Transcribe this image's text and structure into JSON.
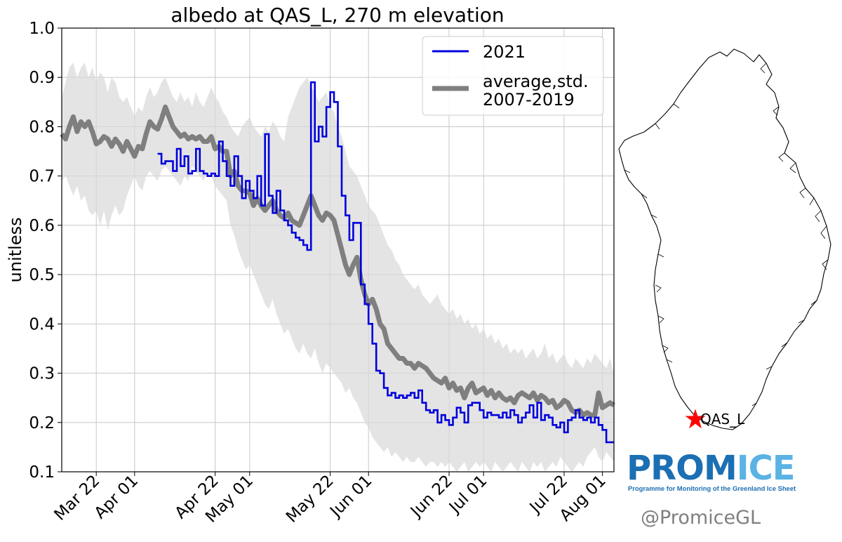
{
  "chart_data": {
    "type": "line",
    "title": "albedo at QAS_L, 270 m elevation",
    "xlabel": "",
    "ylabel": "unitless",
    "ylim": [
      0.1,
      1.0
    ],
    "yticks": [
      "0.1",
      "0.2",
      "0.3",
      "0.4",
      "0.5",
      "0.6",
      "0.7",
      "0.8",
      "0.9",
      "1.0"
    ],
    "x_start_doy": 72,
    "x_end_doy": 216,
    "xticks": [
      {
        "label": "Mar 22",
        "doy": 81
      },
      {
        "label": "Apr 01",
        "doy": 91
      },
      {
        "label": "Apr 22",
        "doy": 112
      },
      {
        "label": "May 01",
        "doy": 121
      },
      {
        "label": "May 22",
        "doy": 142
      },
      {
        "label": "Jun 01",
        "doy": 152
      },
      {
        "label": "Jun 22",
        "doy": 173
      },
      {
        "label": "Jul 01",
        "doy": 182
      },
      {
        "label": "Jul 22",
        "doy": 203
      },
      {
        "label": "Aug 01",
        "doy": 213
      }
    ],
    "grid": true,
    "legend_position": "top-right",
    "series": [
      {
        "name": "2021",
        "color": "#0000dd",
        "style": "step",
        "x": [
          97,
          98,
          99,
          101,
          102,
          103,
          104,
          105,
          106,
          107,
          108,
          109,
          110,
          111,
          112,
          113,
          114,
          115,
          116,
          117,
          118,
          119,
          120,
          121,
          122,
          123,
          124,
          125,
          126,
          127,
          128,
          129,
          130,
          131,
          132,
          133,
          134,
          135,
          136,
          137,
          138,
          139,
          140,
          141,
          142,
          143,
          144,
          145,
          146,
          147,
          148,
          149,
          150,
          151,
          152,
          153,
          154,
          155,
          156,
          157,
          158,
          159,
          160,
          161,
          162,
          163,
          164,
          165,
          166,
          167,
          168,
          169,
          170,
          171,
          172,
          173,
          174,
          175,
          176,
          177,
          178,
          179,
          180,
          181,
          182,
          183,
          184,
          185,
          186,
          187,
          188,
          189,
          190,
          191,
          192,
          193,
          194,
          195,
          196,
          197,
          198,
          199,
          200,
          201,
          202,
          203,
          204,
          205,
          206,
          207,
          208,
          209,
          210,
          211,
          212,
          213,
          214,
          215
        ],
        "values": [
          0.745,
          0.725,
          0.73,
          0.71,
          0.755,
          0.72,
          0.74,
          0.705,
          0.71,
          0.755,
          0.71,
          0.705,
          0.7,
          0.705,
          0.7,
          0.77,
          0.73,
          0.7,
          0.68,
          0.74,
          0.7,
          0.655,
          0.69,
          0.67,
          0.655,
          0.7,
          0.64,
          0.785,
          0.66,
          0.625,
          0.67,
          0.63,
          0.61,
          0.6,
          0.585,
          0.575,
          0.57,
          0.56,
          0.55,
          0.89,
          0.77,
          0.8,
          0.78,
          0.84,
          0.87,
          0.85,
          0.76,
          0.66,
          0.62,
          0.57,
          0.605,
          0.605,
          0.48,
          0.44,
          0.4,
          0.36,
          0.305,
          0.3,
          0.27,
          0.255,
          0.26,
          0.25,
          0.255,
          0.25,
          0.255,
          0.26,
          0.25,
          0.265,
          0.24,
          0.225,
          0.22,
          0.225,
          0.2,
          0.215,
          0.205,
          0.195,
          0.21,
          0.23,
          0.22,
          0.2,
          0.235,
          0.24,
          0.24,
          0.225,
          0.21,
          0.22,
          0.215,
          0.215,
          0.21,
          0.22,
          0.21,
          0.225,
          0.215,
          0.2,
          0.21,
          0.22,
          0.235,
          0.21,
          0.24,
          0.205,
          0.215,
          0.21,
          0.195,
          0.19,
          0.2,
          0.18,
          0.205,
          0.21,
          0.225,
          0.21,
          0.205,
          0.21,
          0.2,
          0.21,
          0.195,
          0.185,
          0.16,
          0.16
        ]
      },
      {
        "name": "average,std.\n2007-2019",
        "legend_lines": [
          "average,std.",
          "2007-2019"
        ],
        "color": "#7f7f7f",
        "style": "line",
        "x": [
          72,
          73,
          74,
          75,
          76,
          77,
          78,
          79,
          80,
          81,
          82,
          83,
          84,
          85,
          86,
          87,
          88,
          89,
          90,
          91,
          92,
          93,
          94,
          95,
          96,
          97,
          98,
          99,
          100,
          101,
          102,
          103,
          104,
          105,
          106,
          107,
          108,
          109,
          110,
          111,
          112,
          113,
          114,
          115,
          116,
          117,
          118,
          119,
          120,
          121,
          122,
          123,
          124,
          125,
          126,
          127,
          128,
          129,
          130,
          131,
          132,
          133,
          134,
          135,
          136,
          137,
          138,
          139,
          140,
          141,
          142,
          143,
          144,
          145,
          146,
          147,
          148,
          149,
          150,
          151,
          152,
          153,
          154,
          155,
          156,
          157,
          158,
          159,
          160,
          161,
          162,
          163,
          164,
          165,
          166,
          167,
          168,
          169,
          170,
          171,
          172,
          173,
          174,
          175,
          176,
          177,
          178,
          179,
          180,
          181,
          182,
          183,
          184,
          185,
          186,
          187,
          188,
          189,
          190,
          191,
          192,
          193,
          194,
          195,
          196,
          197,
          198,
          199,
          200,
          201,
          202,
          203,
          204,
          205,
          206,
          207,
          208,
          209,
          210,
          211,
          212,
          213,
          214,
          215,
          216
        ],
        "values": [
          0.785,
          0.775,
          0.8,
          0.82,
          0.79,
          0.81,
          0.8,
          0.81,
          0.79,
          0.765,
          0.77,
          0.78,
          0.775,
          0.76,
          0.775,
          0.765,
          0.75,
          0.77,
          0.755,
          0.74,
          0.76,
          0.755,
          0.785,
          0.81,
          0.8,
          0.795,
          0.815,
          0.84,
          0.82,
          0.8,
          0.79,
          0.78,
          0.785,
          0.775,
          0.78,
          0.775,
          0.78,
          0.77,
          0.77,
          0.78,
          0.755,
          0.76,
          0.75,
          0.75,
          0.7,
          0.71,
          0.68,
          0.67,
          0.67,
          0.665,
          0.64,
          0.655,
          0.64,
          0.63,
          0.64,
          0.65,
          0.63,
          0.62,
          0.615,
          0.625,
          0.61,
          0.605,
          0.6,
          0.62,
          0.64,
          0.66,
          0.64,
          0.62,
          0.61,
          0.625,
          0.62,
          0.61,
          0.58,
          0.55,
          0.52,
          0.5,
          0.52,
          0.535,
          0.49,
          0.46,
          0.44,
          0.45,
          0.43,
          0.4,
          0.39,
          0.36,
          0.35,
          0.34,
          0.33,
          0.33,
          0.32,
          0.32,
          0.31,
          0.32,
          0.315,
          0.31,
          0.3,
          0.29,
          0.285,
          0.28,
          0.29,
          0.27,
          0.28,
          0.265,
          0.27,
          0.25,
          0.27,
          0.28,
          0.26,
          0.265,
          0.27,
          0.255,
          0.265,
          0.25,
          0.26,
          0.25,
          0.245,
          0.25,
          0.24,
          0.255,
          0.26,
          0.255,
          0.25,
          0.26,
          0.245,
          0.255,
          0.25,
          0.24,
          0.245,
          0.23,
          0.235,
          0.245,
          0.24,
          0.225,
          0.22,
          0.225,
          0.215,
          0.22,
          0.215,
          0.215,
          0.26,
          0.23,
          0.235,
          0.24,
          0.235
        ],
        "band_lower": [
          0.69,
          0.7,
          0.68,
          0.66,
          0.68,
          0.65,
          0.66,
          0.63,
          0.62,
          0.63,
          0.6,
          0.63,
          0.59,
          0.62,
          0.64,
          0.62,
          0.63,
          0.66,
          0.68,
          0.7,
          0.68,
          0.67,
          0.7,
          0.71,
          0.7,
          0.69,
          0.71,
          0.72,
          0.71,
          0.7,
          0.69,
          0.68,
          0.7,
          0.69,
          0.72,
          0.71,
          0.7,
          0.69,
          0.71,
          0.7,
          0.68,
          0.67,
          0.66,
          0.65,
          0.6,
          0.58,
          0.55,
          0.53,
          0.51,
          0.52,
          0.5,
          0.48,
          0.46,
          0.44,
          0.43,
          0.45,
          0.42,
          0.4,
          0.38,
          0.39,
          0.37,
          0.35,
          0.34,
          0.36,
          0.34,
          0.33,
          0.35,
          0.32,
          0.3,
          0.32,
          0.31,
          0.3,
          0.29,
          0.28,
          0.26,
          0.27,
          0.25,
          0.24,
          0.22,
          0.2,
          0.19,
          0.17,
          0.16,
          0.15,
          0.14,
          0.15,
          0.13,
          0.14,
          0.13,
          0.12,
          0.13,
          0.12,
          0.12,
          0.13,
          0.12,
          0.11,
          0.12,
          0.12,
          0.11,
          0.12,
          0.11,
          0.12,
          0.11,
          0.1,
          0.11,
          0.12,
          0.1,
          0.11,
          0.12,
          0.11,
          0.12,
          0.11,
          0.1,
          0.12,
          0.11,
          0.1,
          0.11,
          0.12,
          0.11,
          0.1,
          0.12,
          0.11,
          0.1,
          0.12,
          0.11,
          0.12,
          0.1,
          0.11,
          0.12,
          0.11,
          0.13,
          0.12,
          0.11,
          0.1,
          0.11,
          0.12,
          0.11,
          0.13,
          0.14,
          0.15,
          0.13,
          0.12,
          0.14,
          0.13,
          0.12
        ],
        "band_upper": [
          0.86,
          0.89,
          0.92,
          0.93,
          0.9,
          0.92,
          0.93,
          0.9,
          0.92,
          0.89,
          0.91,
          0.9,
          0.87,
          0.9,
          0.89,
          0.86,
          0.85,
          0.86,
          0.84,
          0.82,
          0.84,
          0.83,
          0.86,
          0.88,
          0.86,
          0.87,
          0.89,
          0.9,
          0.88,
          0.86,
          0.85,
          0.87,
          0.85,
          0.86,
          0.84,
          0.87,
          0.85,
          0.84,
          0.86,
          0.88,
          0.86,
          0.85,
          0.83,
          0.82,
          0.8,
          0.79,
          0.78,
          0.8,
          0.81,
          0.82,
          0.8,
          0.79,
          0.78,
          0.8,
          0.79,
          0.81,
          0.8,
          0.78,
          0.77,
          0.82,
          0.84,
          0.86,
          0.88,
          0.89,
          0.9,
          0.88,
          0.87,
          0.85,
          0.86,
          0.87,
          0.84,
          0.83,
          0.8,
          0.78,
          0.75,
          0.72,
          0.71,
          0.7,
          0.68,
          0.66,
          0.64,
          0.63,
          0.62,
          0.6,
          0.58,
          0.56,
          0.55,
          0.53,
          0.52,
          0.5,
          0.49,
          0.48,
          0.47,
          0.48,
          0.46,
          0.45,
          0.44,
          0.45,
          0.46,
          0.44,
          0.43,
          0.42,
          0.43,
          0.41,
          0.42,
          0.4,
          0.41,
          0.39,
          0.4,
          0.38,
          0.39,
          0.37,
          0.38,
          0.36,
          0.37,
          0.35,
          0.36,
          0.34,
          0.35,
          0.34,
          0.35,
          0.33,
          0.34,
          0.35,
          0.33,
          0.34,
          0.36,
          0.33,
          0.34,
          0.32,
          0.33,
          0.34,
          0.32,
          0.31,
          0.33,
          0.32,
          0.31,
          0.33,
          0.32,
          0.34,
          0.33,
          0.32,
          0.31,
          0.33,
          0.3
        ]
      }
    ]
  },
  "map": {
    "station_label": "QAS_L",
    "station_color": "#ff0000"
  },
  "branding": {
    "logo_part1": "PROM",
    "logo_part2": "ICE",
    "tagline": "Programme for Monitoring of the Greenland Ice Sheet",
    "twitter_handle": "@PromiceGL"
  }
}
